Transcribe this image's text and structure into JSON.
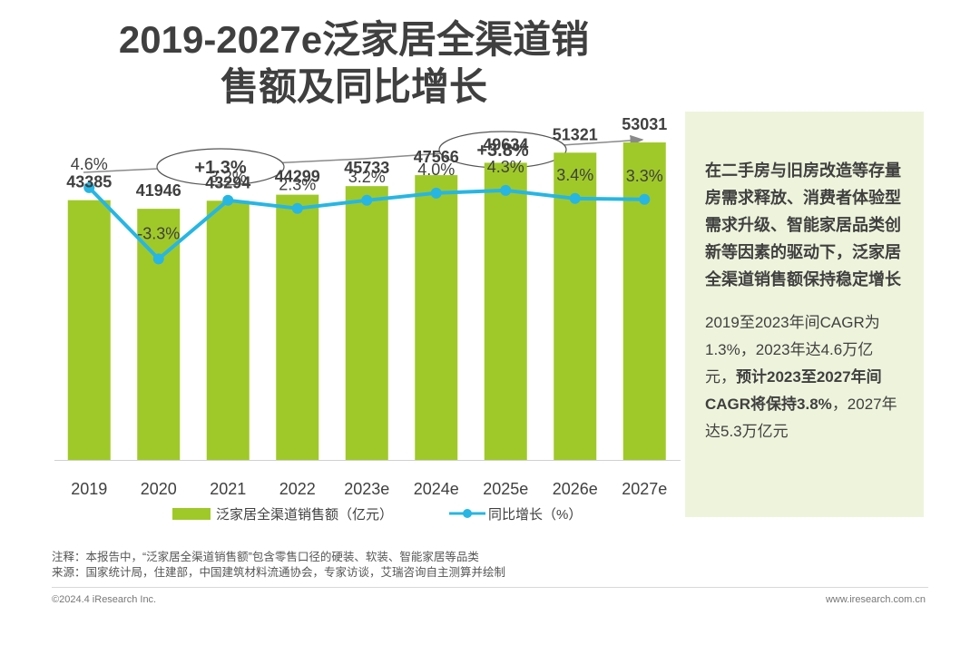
{
  "title_line1": "2019-2027e泛家居全渠道销",
  "title_line2": "售额及同比增长",
  "chart_data": {
    "type": "bar",
    "categories": [
      "2019",
      "2020",
      "2021",
      "2022",
      "2023e",
      "2024e",
      "2025e",
      "2026e",
      "2027e"
    ],
    "series": [
      {
        "name": "泛家居全渠道销售额（亿元）",
        "type": "bar",
        "values": [
          43385,
          41946,
          43294,
          44299,
          45733,
          47566,
          49634,
          51321,
          53031
        ],
        "labels": [
          "43385",
          "41946",
          "43294",
          "44299",
          "45733",
          "47566",
          "49634",
          "51321",
          "53031"
        ]
      },
      {
        "name": "同比增长（%）",
        "type": "line",
        "values": [
          4.6,
          -3.3,
          3.2,
          2.3,
          3.2,
          4.0,
          4.3,
          3.4,
          3.3
        ],
        "labels": [
          "4.6%",
          "-3.3%",
          "3.2%",
          "2.3%",
          "3.2%",
          "4.0%",
          "4.3%",
          "3.4%",
          "3.3%"
        ]
      }
    ],
    "bar_ylim": [
      0,
      60000
    ],
    "line_ylim": [
      -10,
      8
    ],
    "annotations": [
      {
        "text": "+1.3%",
        "span": "2019-2023"
      },
      {
        "text": "+3.8%",
        "span": "2023-2027"
      }
    ],
    "colors": {
      "bar": "#9fc928",
      "line": "#27b6e3",
      "text": "#404040",
      "arrow": "#8a8a8a"
    }
  },
  "side": {
    "highlight": "在二手房与旧房改造等存量房需求释放、消费者体验型需求升级、智能家居品类创新等因素的驱动下，泛家居全渠道销售额保持稳定增长",
    "body_part1": "2019至2023年间CAGR为1.3%，2023年达4.6万亿元，",
    "body_bold": "预计2023至2027年间CAGR将保持3.8%",
    "body_part2": "，2027年达5.3万亿元"
  },
  "notes": {
    "note": "注释：本报告中，“泛家居全渠道销售额”包含零售口径的硬装、软装、智能家居等品类",
    "source": "来源：国家统计局，住建部，中国建筑材料流通协会，专家访谈，艾瑞咨询自主测算并绘制"
  },
  "footer": {
    "copyright": "©2024.4 iResearch Inc.",
    "website": "www.iresearch.com.cn"
  }
}
